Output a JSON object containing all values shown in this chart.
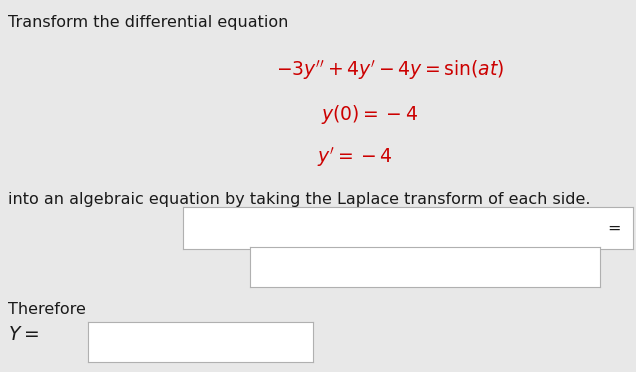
{
  "bg_color": "#e8e8e8",
  "text_color": "#1a1a1a",
  "eq_color": "#cc0000",
  "line1": "Transform the differential equation",
  "eq_main": "$-3y'' + 4y' - 4y = \\mathrm{sin}(at)$",
  "eq_ic1": "$y(0) = -4$",
  "eq_ic2": "$y' = -4$",
  "line2": "into an algebraic equation by taking the Laplace transform of each side.",
  "line3": "Therefore",
  "line4": "$Y =$",
  "font_size_text": 11.5,
  "font_size_eq": 13.5
}
